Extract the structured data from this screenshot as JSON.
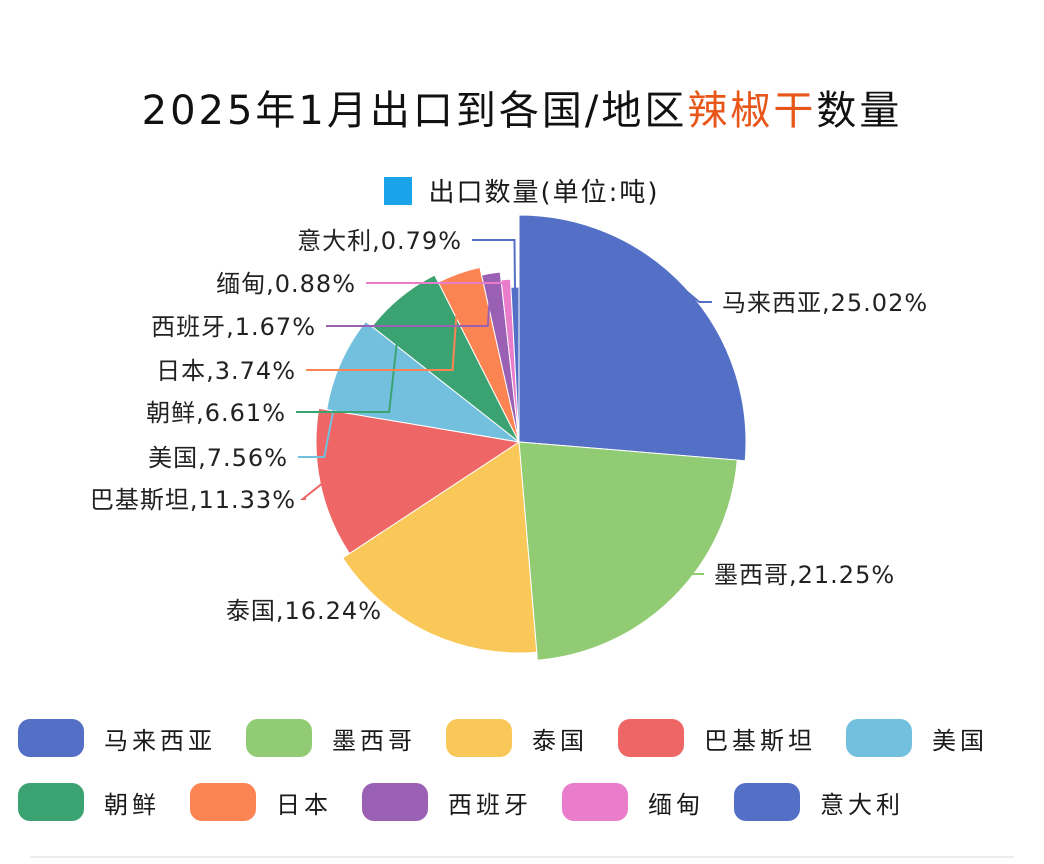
{
  "title": {
    "prefix": "2025年1月出口到各国/地区",
    "highlight": "辣椒干",
    "suffix": "数量"
  },
  "colors": {
    "highlight": "#e8561a",
    "series_legend": "#1aa3e8"
  },
  "chart_data": {
    "type": "pie",
    "series_name": "出口数量(单位:吨)",
    "slices": [
      {
        "name": "马来西亚",
        "percent": 25.02,
        "label": "马来西亚,25.02%",
        "color": "#5470c6"
      },
      {
        "name": "墨西哥",
        "percent": 21.25,
        "label": "墨西哥,21.25%",
        "color": "#91cc75"
      },
      {
        "name": "泰国",
        "percent": 16.24,
        "label": "泰国,16.24%",
        "color": "#fac858"
      },
      {
        "name": "巴基斯坦",
        "percent": 11.33,
        "label": "巴基斯坦,11.33%",
        "color": "#ee6666"
      },
      {
        "name": "美国",
        "percent": 7.56,
        "label": "美国,7.56%",
        "color": "#73c0de"
      },
      {
        "name": "朝鲜",
        "percent": 6.61,
        "label": "朝鲜,6.61%",
        "color": "#3ba272"
      },
      {
        "name": "日本",
        "percent": 3.74,
        "label": "日本,3.74%",
        "color": "#fc8452"
      },
      {
        "name": "西班牙",
        "percent": 1.67,
        "label": "西班牙,1.67%",
        "color": "#9a60b4"
      },
      {
        "name": "缅甸",
        "percent": 0.88,
        "label": "缅甸,0.88%",
        "color": "#ea7ccc"
      },
      {
        "name": "意大利",
        "percent": 0.79,
        "label": "意大利,0.79%",
        "color": "#5470c6"
      }
    ]
  },
  "legend": {
    "placement": "bottom",
    "rows": [
      [
        "马来西亚",
        "墨西哥",
        "泰国",
        "巴基斯坦",
        "美国"
      ],
      [
        "朝鲜",
        "日本",
        "西班牙",
        "缅甸",
        "意大利"
      ]
    ]
  }
}
